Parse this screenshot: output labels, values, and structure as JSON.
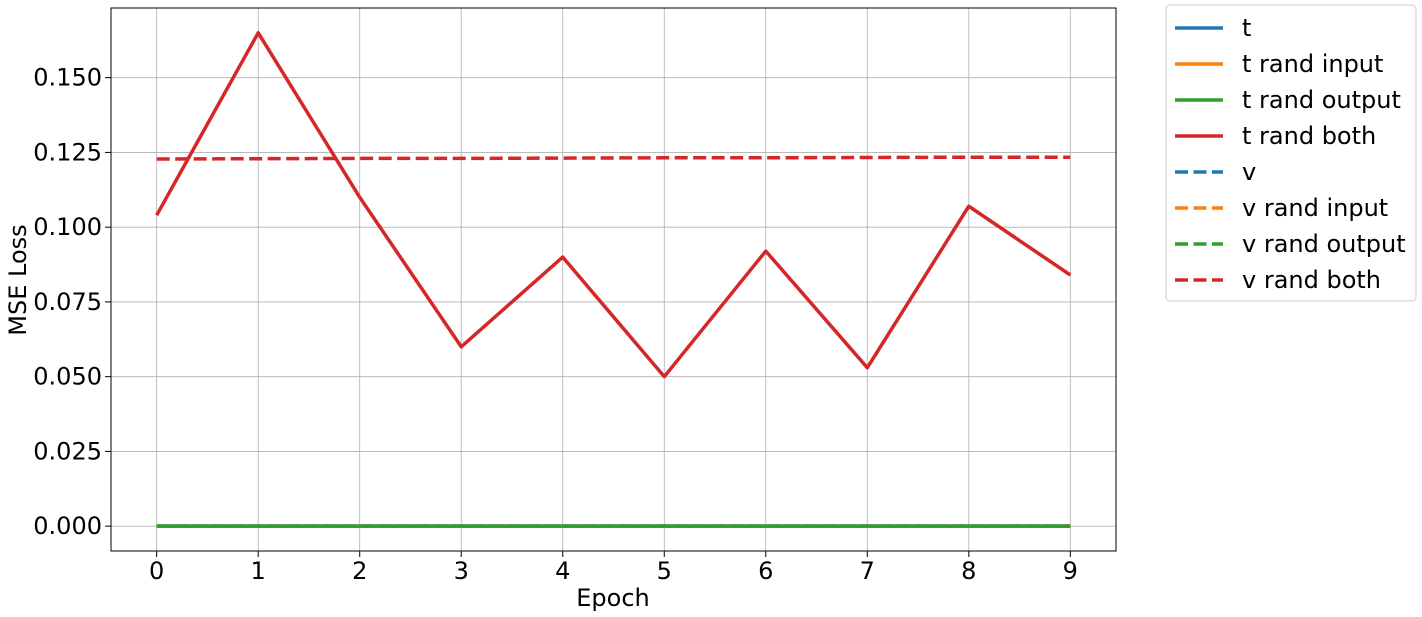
{
  "chart_data": {
    "type": "line",
    "title": "",
    "xlabel": "Epoch",
    "ylabel": "MSE Loss",
    "x": [
      0,
      1,
      2,
      3,
      4,
      5,
      6,
      7,
      8,
      9
    ],
    "xticks": [
      "0",
      "1",
      "2",
      "3",
      "4",
      "5",
      "6",
      "7",
      "8",
      "9"
    ],
    "yticks": [
      "0.000",
      "0.025",
      "0.050",
      "0.075",
      "0.100",
      "0.125",
      "0.150"
    ],
    "ytick_values": [
      0.0,
      0.025,
      0.05,
      0.075,
      0.1,
      0.125,
      0.15
    ],
    "xlim": [
      -0.45,
      9.45
    ],
    "ylim": [
      -0.0083,
      0.1733
    ],
    "grid": true,
    "legend_position": "outside-right-top",
    "series": [
      {
        "name": "t",
        "color": "#1f77b4",
        "dash": "solid",
        "values": [
          0,
          0,
          0,
          0,
          0,
          0,
          0,
          0,
          0,
          0
        ]
      },
      {
        "name": "t rand input",
        "color": "#ff7f0e",
        "dash": "solid",
        "values": [
          0,
          0,
          0,
          0,
          0,
          0,
          0,
          0,
          0,
          0
        ]
      },
      {
        "name": "t rand output",
        "color": "#2ca02c",
        "dash": "solid",
        "values": [
          0,
          0,
          0,
          0,
          0,
          0,
          0,
          0,
          0,
          0
        ]
      },
      {
        "name": "t rand both",
        "color": "#d62728",
        "dash": "solid",
        "values": [
          0.104,
          0.165,
          0.11,
          0.06,
          0.09,
          0.05,
          0.092,
          0.053,
          0.107,
          0.084
        ]
      },
      {
        "name": "v",
        "color": "#1f77b4",
        "dash": "dashed",
        "values": [
          0,
          0,
          0,
          0,
          0,
          0,
          0,
          0,
          0,
          0
        ]
      },
      {
        "name": "v rand input",
        "color": "#ff7f0e",
        "dash": "dashed",
        "values": [
          0,
          0,
          0,
          0,
          0,
          0,
          0,
          0,
          0,
          0
        ]
      },
      {
        "name": "v rand output",
        "color": "#2ca02c",
        "dash": "dashed",
        "values": [
          0,
          0,
          0,
          0,
          0,
          0,
          0,
          0,
          0,
          0
        ]
      },
      {
        "name": "v rand both",
        "color": "#d62728",
        "dash": "dashed",
        "values": [
          0.1228,
          0.1229,
          0.123,
          0.123,
          0.1231,
          0.1232,
          0.1232,
          0.1233,
          0.1234,
          0.1234
        ]
      }
    ]
  }
}
